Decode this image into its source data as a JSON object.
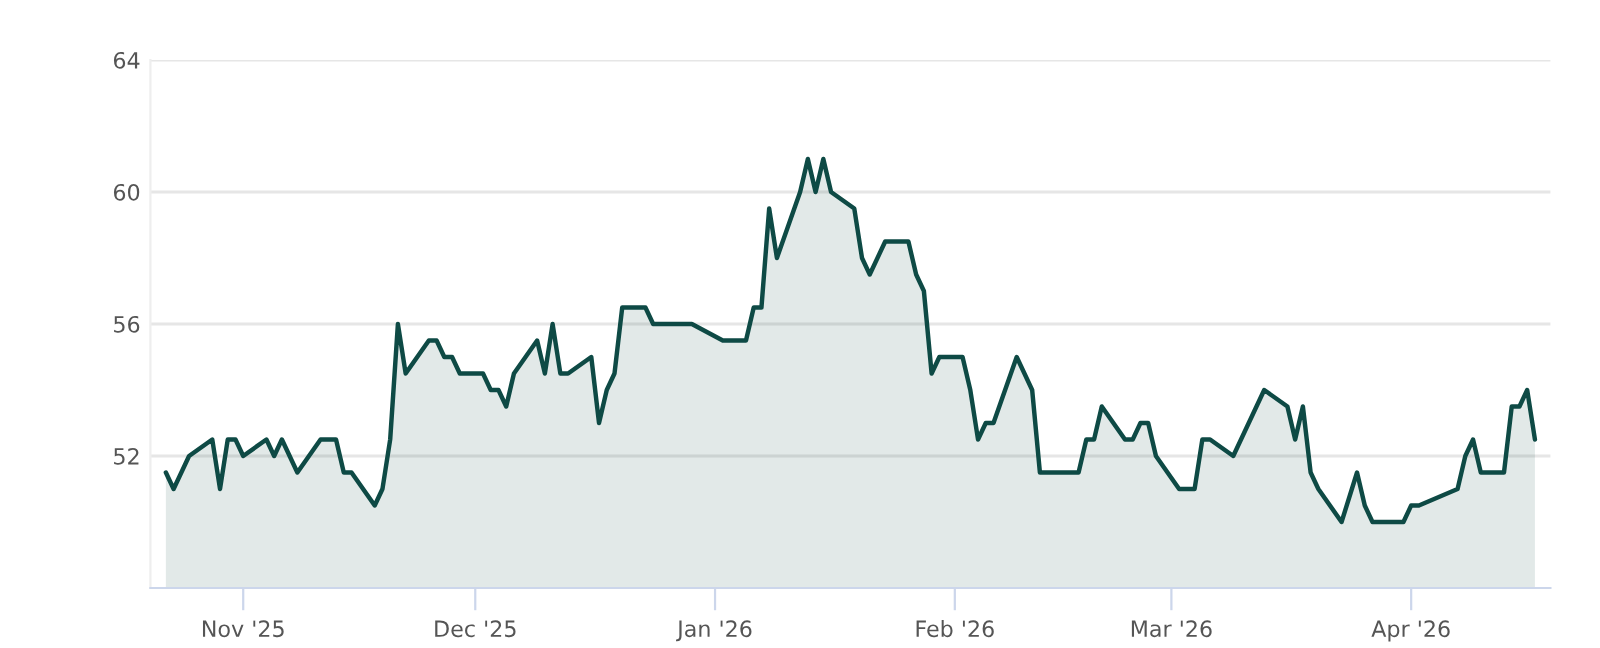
{
  "chart_data": {
    "type": "area",
    "x": [
      "2025-10-22",
      "2025-10-23",
      "2025-10-25",
      "2025-10-28",
      "2025-10-29",
      "2025-10-30",
      "2025-10-31",
      "2025-11-01",
      "2025-11-04",
      "2025-11-05",
      "2025-11-06",
      "2025-11-08",
      "2025-11-11",
      "2025-11-13",
      "2025-11-14",
      "2025-11-15",
      "2025-11-18",
      "2025-11-19",
      "2025-11-20",
      "2025-11-21",
      "2025-11-22",
      "2025-11-25",
      "2025-11-26",
      "2025-11-27",
      "2025-11-28",
      "2025-11-29",
      "2025-12-02",
      "2025-12-03",
      "2025-12-04",
      "2025-12-05",
      "2025-12-06",
      "2025-12-09",
      "2025-12-10",
      "2025-12-11",
      "2025-12-12",
      "2025-12-13",
      "2025-12-16",
      "2025-12-17",
      "2025-12-18",
      "2025-12-19",
      "2025-12-20",
      "2025-12-23",
      "2025-12-24",
      "2025-12-29",
      "2026-01-02",
      "2026-01-05",
      "2026-01-06",
      "2026-01-07",
      "2026-01-08",
      "2026-01-09",
      "2026-01-12",
      "2026-01-13",
      "2026-01-14",
      "2026-01-15",
      "2026-01-16",
      "2026-01-19",
      "2026-01-20",
      "2026-01-21",
      "2026-01-23",
      "2026-01-26",
      "2026-01-27",
      "2026-01-28",
      "2026-01-29",
      "2026-01-30",
      "2026-02-02",
      "2026-02-03",
      "2026-02-04",
      "2026-02-05",
      "2026-02-06",
      "2026-02-09",
      "2026-02-11",
      "2026-02-12",
      "2026-02-17",
      "2026-02-18",
      "2026-02-19",
      "2026-02-20",
      "2026-02-23",
      "2026-02-24",
      "2026-02-25",
      "2026-02-26",
      "2026-02-27",
      "2026-03-02",
      "2026-03-04",
      "2026-03-05",
      "2026-03-06",
      "2026-03-09",
      "2026-03-13",
      "2026-03-16",
      "2026-03-17",
      "2026-03-18",
      "2026-03-19",
      "2026-03-20",
      "2026-03-23",
      "2026-03-25",
      "2026-03-26",
      "2026-03-27",
      "2026-03-31",
      "2026-04-01",
      "2026-04-02",
      "2026-04-07",
      "2026-04-08",
      "2026-04-09",
      "2026-04-10",
      "2026-04-13",
      "2026-04-14",
      "2026-04-15",
      "2026-04-16",
      "2026-04-17"
    ],
    "series": [
      {
        "color": "#0e4a45",
        "values": [
          51.5,
          51.0,
          52.0,
          52.5,
          51.0,
          52.5,
          52.5,
          52.0,
          52.5,
          52.0,
          52.5,
          51.5,
          52.5,
          52.5,
          51.5,
          51.5,
          50.5,
          51.0,
          52.5,
          56.0,
          54.5,
          55.5,
          55.5,
          55.0,
          55.0,
          54.5,
          54.5,
          54.0,
          54.0,
          53.5,
          54.5,
          55.5,
          54.5,
          56.0,
          54.5,
          54.5,
          55.0,
          53.0,
          54.0,
          54.5,
          56.5,
          56.5,
          56.0,
          56.0,
          55.5,
          55.5,
          56.5,
          56.5,
          59.5,
          58.0,
          60.0,
          61.0,
          60.0,
          61.0,
          60.0,
          59.5,
          58.0,
          57.5,
          58.5,
          58.5,
          57.5,
          57.0,
          54.5,
          55.0,
          55.0,
          54.0,
          52.5,
          53.0,
          53.0,
          55.0,
          54.0,
          51.5,
          51.5,
          52.5,
          52.5,
          53.5,
          52.5,
          52.5,
          53.0,
          53.0,
          52.0,
          51.0,
          51.0,
          52.5,
          52.5,
          52.0,
          54.0,
          53.5,
          52.5,
          53.5,
          51.5,
          51.0,
          50.0,
          51.5,
          50.5,
          50.0,
          50.0,
          50.5,
          50.5,
          51.0,
          52.0,
          52.5,
          51.5,
          51.5,
          53.5,
          53.5,
          54.0,
          52.5
        ]
      }
    ],
    "xlim": [
      "2025-10-20",
      "2026-04-19"
    ],
    "xticks": [
      {
        "value": "2025-11-01",
        "label": "Nov '25"
      },
      {
        "value": "2025-12-01",
        "label": "Dec '25"
      },
      {
        "value": "2026-01-01",
        "label": "Jan '26"
      },
      {
        "value": "2026-02-01",
        "label": "Feb '26"
      },
      {
        "value": "2026-03-01",
        "label": "Mar '26"
      },
      {
        "value": "2026-04-01",
        "label": "Apr '26"
      }
    ],
    "ylim": [
      48,
      64
    ],
    "yticks": [
      52,
      56,
      60,
      64
    ],
    "grid": "y",
    "legend": false
  }
}
